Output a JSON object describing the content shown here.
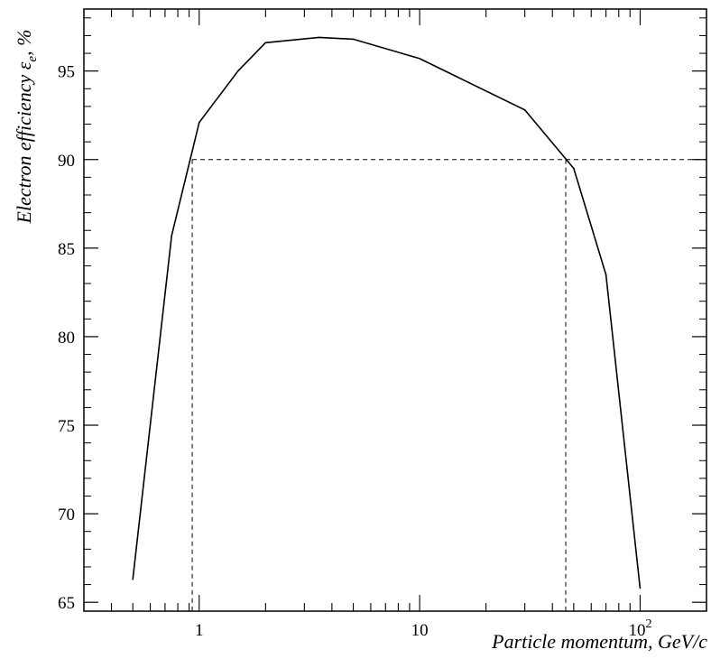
{
  "chart_data": {
    "type": "line",
    "xscale": "log",
    "xlim": [
      0.3,
      200
    ],
    "ylim": [
      64.5,
      98.5
    ],
    "xlabel": "Particle momentum, GeV/c",
    "ylabel_main": "Electron efficiency ε",
    "ylabel_sub": "e",
    "ylabel_tail": ", %",
    "x_ticks": [
      {
        "value": 1,
        "label": "1"
      },
      {
        "value": 10,
        "label": "10"
      },
      {
        "value": 100,
        "label": "10",
        "sup": "2"
      }
    ],
    "y_ticks": [
      65,
      70,
      75,
      80,
      85,
      90,
      95
    ],
    "series": [
      {
        "x": [
          0.5,
          0.75,
          1.0,
          1.5,
          2.0,
          3.5,
          5.0,
          10.0,
          30.0,
          50.0,
          70.0,
          100.0
        ],
        "y": [
          66.3,
          85.7,
          92.1,
          95.0,
          96.6,
          96.9,
          96.8,
          95.7,
          92.8,
          89.5,
          83.5,
          65.8
        ]
      }
    ],
    "reference_lines": [
      {
        "orientation": "horizontal",
        "value": 90,
        "style": "dashed"
      },
      {
        "orientation": "vertical",
        "value": 0.93,
        "style": "dashed"
      },
      {
        "orientation": "vertical",
        "value": 46,
        "style": "dashed"
      }
    ]
  }
}
